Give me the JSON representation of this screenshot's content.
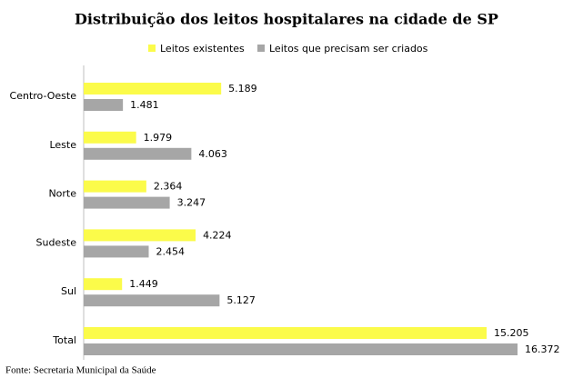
{
  "chart_data": {
    "type": "bar",
    "orientation": "horizontal",
    "title": "Distribuição dos leitos hospitalares na cidade de SP",
    "categories": [
      "Centro-Oeste",
      "Leste",
      "Norte",
      "Sudeste",
      "Sul",
      "Total"
    ],
    "series": [
      {
        "name": "Leitos existentes",
        "color": "#fbfb4a",
        "values": [
          5189,
          1979,
          2364,
          4224,
          1449,
          15205
        ],
        "value_labels": [
          "5.189",
          "1.979",
          "2.364",
          "4.224",
          "1.449",
          "15.205"
        ]
      },
      {
        "name": "Leitos que precisam ser criados",
        "color": "#a6a6a6",
        "values": [
          1481,
          4063,
          3247,
          2454,
          5127,
          16372
        ],
        "value_labels": [
          "1.481",
          "4.063",
          "3.247",
          "2.454",
          "5.127",
          "16.372"
        ]
      }
    ],
    "legend": "top",
    "source": "Fonte: Secretaria Municipal da Saúde"
  }
}
